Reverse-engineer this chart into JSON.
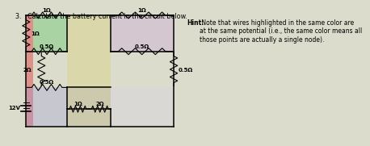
{
  "title": "3.   Calculate the battery current in the circuit below.",
  "hint_title": "Hint:",
  "hint_body": " Note that wires highlighted in the same color are\nat the same potential (i.e., the same color means all\nthose points are actually a single node).",
  "bg_outer": "#dcdccc",
  "bg_circuit": "#e8e8dc",
  "colors": {
    "red": "#e06060",
    "green": "#80cc80",
    "yellow": "#d8d060",
    "purple": "#c8a0d8",
    "blue": "#9898d8",
    "lavender": "#d8d0e8"
  },
  "labels": {
    "r_top_left": "1Ω",
    "r_top_right": "1Ω",
    "r_mid_left": "0.5Ω",
    "r_mid_right": "0.5Ω",
    "r_bot_left": "0.5Ω",
    "r_bot_m1": "1Ω",
    "r_bot_m2": "2Ω",
    "r_right_vert": "0.5Ω",
    "r_left_vert": "1Ω",
    "r_left_mid": "2Ω",
    "battery": "12V"
  },
  "lw": 1.0
}
